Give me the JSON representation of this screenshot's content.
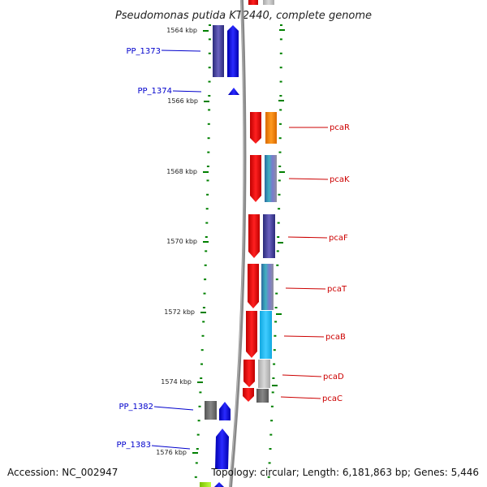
{
  "title": "Pseudomonas putida KT2440, complete genome",
  "accession": "Accession: NC_002947",
  "topology": "Topology: circular; Length: 6,181,863 bp; Genes: 5,446",
  "ticks": [
    {
      "label": "1564 kbp"
    },
    {
      "label": "1566 kbp"
    },
    {
      "label": "1568 kbp"
    },
    {
      "label": "1570 kbp"
    },
    {
      "label": "1572 kbp"
    },
    {
      "label": "1574 kbp"
    },
    {
      "label": "1576 kbp"
    }
  ],
  "genes_left": [
    {
      "name": "PP_1373",
      "color": "#0000cc"
    },
    {
      "name": "PP_1374",
      "color": "#0000cc"
    },
    {
      "name": "PP_1382",
      "color": "#0000cc"
    },
    {
      "name": "PP_1383",
      "color": "#0000cc"
    }
  ],
  "genes_right": [
    {
      "name": "pcaR",
      "color": "#cc0000"
    },
    {
      "name": "pcaK",
      "color": "#cc0000"
    },
    {
      "name": "pcaF",
      "color": "#cc0000"
    },
    {
      "name": "pcaT",
      "color": "#cc0000"
    },
    {
      "name": "pcaB",
      "color": "#cc0000"
    },
    {
      "name": "pcaD",
      "color": "#cc0000"
    },
    {
      "name": "pcaC",
      "color": "#cc0000"
    }
  ],
  "colors": {
    "forward_strand": "#0000ff",
    "reverse_strand": "#ff0000",
    "tick_marks": "#008000",
    "backbone": "#888888"
  }
}
